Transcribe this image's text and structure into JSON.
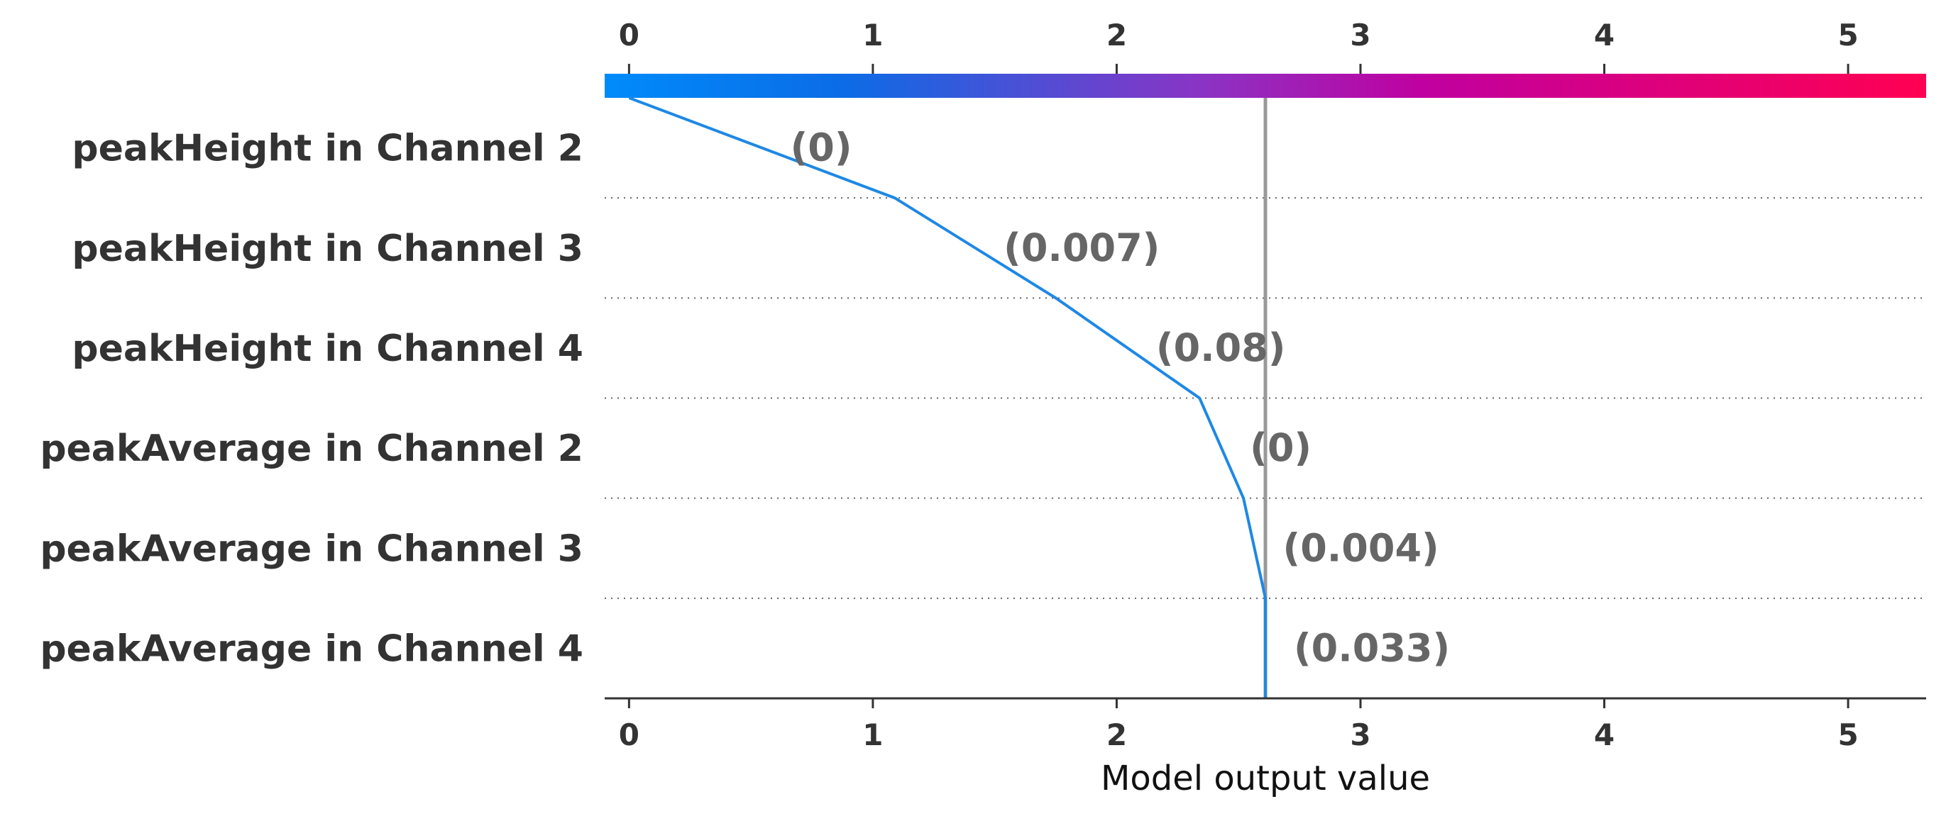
{
  "chart_data": {
    "type": "line",
    "title": "",
    "xlabel": "Model output value",
    "ylabel": "",
    "xlim": [
      -0.1,
      5.32
    ],
    "xticks": [
      0,
      1,
      2,
      3,
      4,
      5
    ],
    "xtick_labels": [
      "0",
      "1",
      "2",
      "3",
      "4",
      "5"
    ],
    "base_value": 0,
    "model_output": 2.61,
    "features": [
      {
        "name": "peakHeight in Channel 2",
        "value_label": "(0)",
        "cumulative_output": 1.09
      },
      {
        "name": "peakHeight in Channel 3",
        "value_label": "(0.007)",
        "cumulative_output": 1.75
      },
      {
        "name": "peakHeight in Channel 4",
        "value_label": "(0.08)",
        "cumulative_output": 2.34
      },
      {
        "name": "peakAverage in Channel 2",
        "value_label": "(0)",
        "cumulative_output": 2.52
      },
      {
        "name": "peakAverage in Channel 3",
        "value_label": "(0.004)",
        "cumulative_output": 2.61
      },
      {
        "name": "peakAverage in Channel 4",
        "value_label": "(0.033)",
        "cumulative_output": 2.61
      }
    ],
    "colorbar": {
      "low_color": "#008bfb",
      "mid_color": "#8a34c5",
      "high_color": "#ff0052"
    },
    "line_color": "#1e88e5",
    "reference_line_color": "#999999",
    "grid": true
  }
}
